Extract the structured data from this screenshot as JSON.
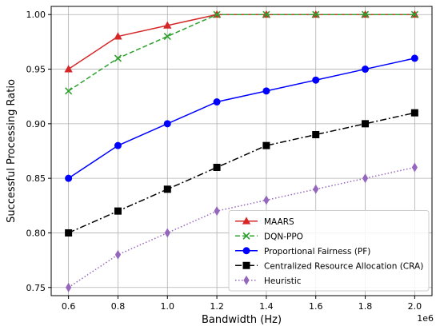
{
  "chart_data": {
    "type": "line",
    "xlabel": "Bandwidth (Hz)",
    "ylabel": "Successful Processing Ratio",
    "x_offset_label": "1e6",
    "x": [
      0.6,
      0.8,
      1.0,
      1.2,
      1.4,
      1.6,
      1.8,
      2.0
    ],
    "xlim": [
      0.53,
      2.07
    ],
    "ylim": [
      0.7425,
      1.0075
    ],
    "x_ticks": [
      "0.6",
      "0.8",
      "1.0",
      "1.2",
      "1.4",
      "1.6",
      "1.8",
      "2.0"
    ],
    "y_ticks": [
      "0.75",
      "0.80",
      "0.85",
      "0.90",
      "0.95",
      "1.00"
    ],
    "grid": true,
    "legend_position": "lower-right",
    "series": [
      {
        "name": "MAARS",
        "color": "#d62728",
        "marker": "triangle",
        "dash": "solid",
        "values": [
          0.95,
          0.98,
          0.99,
          1.0,
          1.0,
          1.0,
          1.0,
          1.0
        ]
      },
      {
        "name": "DQN-PPO",
        "color": "#2ca02c",
        "marker": "x",
        "dash": "dashed",
        "values": [
          0.93,
          0.96,
          0.98,
          1.0,
          1.0,
          1.0,
          1.0,
          1.0
        ]
      },
      {
        "name": "Proportional Fairness (PF)",
        "color": "#0000ff",
        "marker": "circle",
        "dash": "solid",
        "values": [
          0.85,
          0.88,
          0.9,
          0.92,
          0.93,
          0.94,
          0.95,
          0.96
        ]
      },
      {
        "name": "Centralized Resource Allocation (CRA)",
        "color": "#000000",
        "marker": "square",
        "dash": "dashdot",
        "values": [
          0.8,
          0.82,
          0.84,
          0.86,
          0.88,
          0.89,
          0.9,
          0.91
        ]
      },
      {
        "name": "Heuristic",
        "color": "#9467bd",
        "marker": "diamond",
        "dash": "dotted",
        "values": [
          0.75,
          0.78,
          0.8,
          0.82,
          0.83,
          0.84,
          0.85,
          0.86
        ]
      }
    ]
  }
}
